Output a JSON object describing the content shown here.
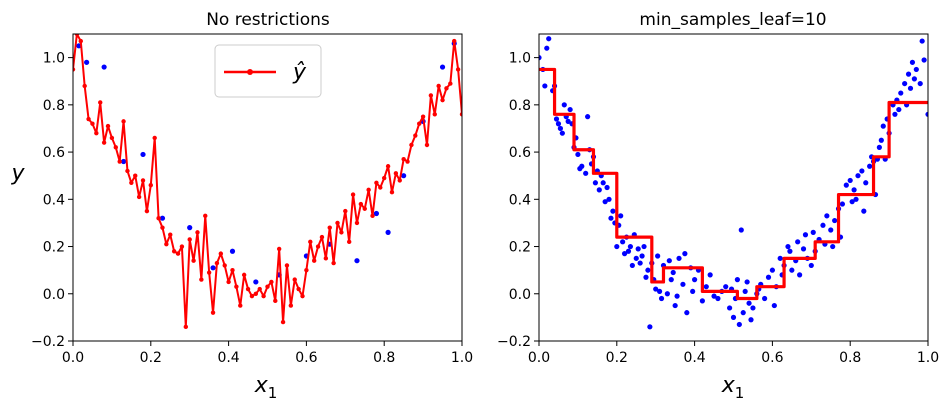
{
  "chart_data": [
    {
      "type": "scatter",
      "title": "No restrictions",
      "xlabel": "x",
      "xlabel_sub": "1",
      "ylabel": "y",
      "xlim": [
        0.0,
        1.0
      ],
      "ylim": [
        -0.2,
        1.1
      ],
      "xticks": [
        "0.0",
        "0.2",
        "0.4",
        "0.6",
        "0.8",
        "1.0"
      ],
      "yticks": [
        "−0.2",
        "0.0",
        "0.2",
        "0.4",
        "0.6",
        "0.8",
        "1.0"
      ],
      "legend": {
        "label": "ŷ",
        "placement": "top-center"
      },
      "series": [
        {
          "kind": "points",
          "color": "#0000ff",
          "points": [
            [
              0.015,
              1.05
            ],
            [
              0.035,
              0.98
            ],
            [
              0.08,
              0.96
            ],
            [
              0.13,
              0.56
            ],
            [
              0.18,
              0.59
            ],
            [
              0.23,
              0.32
            ],
            [
              0.3,
              0.28
            ],
            [
              0.36,
              0.11
            ],
            [
              0.41,
              0.18
            ],
            [
              0.47,
              0.05
            ],
            [
              0.53,
              0.08
            ],
            [
              0.6,
              0.16
            ],
            [
              0.66,
              0.21
            ],
            [
              0.73,
              0.14
            ],
            [
              0.78,
              0.34
            ],
            [
              0.81,
              0.26
            ],
            [
              0.85,
              0.5
            ],
            [
              0.9,
              0.73
            ],
            [
              0.95,
              0.96
            ],
            [
              0.98,
              1.06
            ]
          ]
        },
        {
          "kind": "step",
          "color": "#ff0000",
          "name": "ŷ",
          "x": [
            0.0,
            0.01,
            0.02,
            0.03,
            0.04,
            0.05,
            0.06,
            0.07,
            0.08,
            0.09,
            0.1,
            0.11,
            0.12,
            0.13,
            0.14,
            0.15,
            0.16,
            0.17,
            0.18,
            0.19,
            0.2,
            0.21,
            0.22,
            0.23,
            0.24,
            0.25,
            0.26,
            0.27,
            0.28,
            0.29,
            0.3,
            0.31,
            0.32,
            0.33,
            0.34,
            0.35,
            0.36,
            0.37,
            0.38,
            0.39,
            0.4,
            0.41,
            0.42,
            0.43,
            0.44,
            0.45,
            0.46,
            0.47,
            0.48,
            0.49,
            0.5,
            0.51,
            0.52,
            0.53,
            0.54,
            0.55,
            0.56,
            0.57,
            0.58,
            0.59,
            0.6,
            0.61,
            0.62,
            0.63,
            0.64,
            0.65,
            0.66,
            0.67,
            0.68,
            0.69,
            0.7,
            0.71,
            0.72,
            0.73,
            0.74,
            0.75,
            0.76,
            0.77,
            0.78,
            0.79,
            0.8,
            0.81,
            0.82,
            0.83,
            0.84,
            0.85,
            0.86,
            0.87,
            0.88,
            0.89,
            0.9,
            0.91,
            0.92,
            0.93,
            0.94,
            0.95,
            0.96,
            0.97,
            0.98,
            0.99,
            1.0
          ],
          "y": [
            0.95,
            1.1,
            1.07,
            0.88,
            0.74,
            0.72,
            0.68,
            0.81,
            0.64,
            0.71,
            0.66,
            0.62,
            0.56,
            0.73,
            0.52,
            0.47,
            0.5,
            0.41,
            0.48,
            0.35,
            0.46,
            0.66,
            0.32,
            0.28,
            0.21,
            0.25,
            0.18,
            0.17,
            0.2,
            -0.14,
            0.23,
            0.14,
            0.26,
            0.06,
            0.33,
            0.09,
            -0.08,
            0.13,
            0.17,
            0.12,
            0.05,
            0.1,
            0.03,
            -0.05,
            0.08,
            0.02,
            -0.01,
            0.0,
            0.02,
            -0.01,
            0.03,
            0.05,
            -0.03,
            0.19,
            -0.12,
            0.12,
            -0.05,
            0.06,
            0.02,
            -0.01,
            0.1,
            0.22,
            0.14,
            0.2,
            0.24,
            0.15,
            0.28,
            0.13,
            0.3,
            0.26,
            0.35,
            0.22,
            0.42,
            0.3,
            0.38,
            0.36,
            0.44,
            0.33,
            0.47,
            0.45,
            0.49,
            0.54,
            0.43,
            0.51,
            0.48,
            0.57,
            0.56,
            0.63,
            0.67,
            0.72,
            0.75,
            0.63,
            0.84,
            0.76,
            0.88,
            0.82,
            0.87,
            0.89,
            1.07,
            0.95,
            0.76
          ]
        }
      ]
    },
    {
      "type": "scatter",
      "title": "min_samples_leaf=10",
      "xlabel": "x",
      "xlabel_sub": "1",
      "xlim": [
        0.0,
        1.0
      ],
      "ylim": [
        -0.2,
        1.1
      ],
      "xticks": [
        "0.0",
        "0.2",
        "0.4",
        "0.6",
        "0.8",
        "1.0"
      ],
      "yticks": [
        "−0.2",
        "0.0",
        "0.2",
        "0.4",
        "0.6",
        "0.8",
        "1.0"
      ],
      "series": [
        {
          "kind": "points",
          "color": "#0000ff",
          "points": [
            [
              0.0,
              1.0
            ],
            [
              0.01,
              0.95
            ],
            [
              0.015,
              0.88
            ],
            [
              0.02,
              1.04
            ],
            [
              0.025,
              1.08
            ],
            [
              0.035,
              0.86
            ],
            [
              0.04,
              0.88
            ],
            [
              0.045,
              0.74
            ],
            [
              0.05,
              0.72
            ],
            [
              0.055,
              0.7
            ],
            [
              0.06,
              0.68
            ],
            [
              0.065,
              0.8
            ],
            [
              0.07,
              0.75
            ],
            [
              0.075,
              0.73
            ],
            [
              0.08,
              0.78
            ],
            [
              0.085,
              0.72
            ],
            [
              0.09,
              0.62
            ],
            [
              0.095,
              0.66
            ],
            [
              0.1,
              0.59
            ],
            [
              0.105,
              0.53
            ],
            [
              0.11,
              0.54
            ],
            [
              0.12,
              0.51
            ],
            [
              0.125,
              0.75
            ],
            [
              0.13,
              0.61
            ],
            [
              0.135,
              0.55
            ],
            [
              0.14,
              0.58
            ],
            [
              0.145,
              0.47
            ],
            [
              0.15,
              0.52
            ],
            [
              0.155,
              0.44
            ],
            [
              0.16,
              0.5
            ],
            [
              0.165,
              0.47
            ],
            [
              0.17,
              0.39
            ],
            [
              0.175,
              0.45
            ],
            [
              0.18,
              0.4
            ],
            [
              0.185,
              0.32
            ],
            [
              0.19,
              0.35
            ],
            [
              0.195,
              0.3
            ],
            [
              0.2,
              0.2
            ],
            [
              0.205,
              0.29
            ],
            [
              0.21,
              0.33
            ],
            [
              0.215,
              0.22
            ],
            [
              0.22,
              0.17
            ],
            [
              0.225,
              0.24
            ],
            [
              0.23,
              0.18
            ],
            [
              0.235,
              0.2
            ],
            [
              0.24,
              0.12
            ],
            [
              0.245,
              0.25
            ],
            [
              0.25,
              0.15
            ],
            [
              0.255,
              0.19
            ],
            [
              0.26,
              0.13
            ],
            [
              0.265,
              0.16
            ],
            [
              0.27,
              0.2
            ],
            [
              0.275,
              0.07
            ],
            [
              0.28,
              0.1
            ],
            [
              0.285,
              -0.14
            ],
            [
              0.29,
              0.13
            ],
            [
              0.295,
              0.06
            ],
            [
              0.3,
              0.02
            ],
            [
              0.305,
              0.16
            ],
            [
              0.31,
              0.01
            ],
            [
              0.315,
              -0.02
            ],
            [
              0.32,
              0.12
            ],
            [
              0.33,
              0.0
            ],
            [
              0.335,
              0.14
            ],
            [
              0.34,
              0.06
            ],
            [
              0.345,
              0.09
            ],
            [
              0.35,
              -0.05
            ],
            [
              0.355,
              -0.01
            ],
            [
              0.36,
              0.15
            ],
            [
              0.37,
              0.04
            ],
            [
              0.375,
              0.17
            ],
            [
              0.38,
              -0.08
            ],
            [
              0.39,
              0.11
            ],
            [
              0.395,
              0.01
            ],
            [
              0.4,
              0.06
            ],
            [
              0.41,
              0.1
            ],
            [
              0.42,
              -0.03
            ],
            [
              0.43,
              0.03
            ],
            [
              0.44,
              0.08
            ],
            [
              0.45,
              -0.01
            ],
            [
              0.46,
              -0.02
            ],
            [
              0.47,
              0.01
            ],
            [
              0.48,
              0.03
            ],
            [
              0.49,
              -0.06
            ],
            [
              0.495,
              0.02
            ],
            [
              0.5,
              -0.1
            ],
            [
              0.505,
              -0.02
            ],
            [
              0.51,
              0.06
            ],
            [
              0.515,
              -0.13
            ],
            [
              0.52,
              0.27
            ],
            [
              0.525,
              -0.08
            ],
            [
              0.53,
              0.01
            ],
            [
              0.535,
              0.05
            ],
            [
              0.54,
              -0.04
            ],
            [
              0.545,
              -0.11
            ],
            [
              0.55,
              -0.06
            ],
            [
              0.56,
              0.0
            ],
            [
              0.565,
              0.02
            ],
            [
              0.57,
              0.04
            ],
            [
              0.58,
              -0.02
            ],
            [
              0.59,
              0.07
            ],
            [
              0.6,
              0.1
            ],
            [
              0.605,
              -0.05
            ],
            [
              0.61,
              0.03
            ],
            [
              0.62,
              0.15
            ],
            [
              0.625,
              0.08
            ],
            [
              0.63,
              0.12
            ],
            [
              0.64,
              0.2
            ],
            [
              0.645,
              0.18
            ],
            [
              0.65,
              0.1
            ],
            [
              0.66,
              0.14
            ],
            [
              0.665,
              0.22
            ],
            [
              0.67,
              0.08
            ],
            [
              0.68,
              0.19
            ],
            [
              0.685,
              0.25
            ],
            [
              0.69,
              0.15
            ],
            [
              0.7,
              0.12
            ],
            [
              0.705,
              0.26
            ],
            [
              0.71,
              0.18
            ],
            [
              0.72,
              0.23
            ],
            [
              0.73,
              0.29
            ],
            [
              0.735,
              0.21
            ],
            [
              0.74,
              0.33
            ],
            [
              0.75,
              0.27
            ],
            [
              0.755,
              0.2
            ],
            [
              0.76,
              0.31
            ],
            [
              0.77,
              0.36
            ],
            [
              0.775,
              0.24
            ],
            [
              0.78,
              0.38
            ],
            [
              0.79,
              0.46
            ],
            [
              0.8,
              0.48
            ],
            [
              0.805,
              0.39
            ],
            [
              0.81,
              0.44
            ],
            [
              0.815,
              0.4
            ],
            [
              0.82,
              0.5
            ],
            [
              0.83,
              0.52
            ],
            [
              0.835,
              0.35
            ],
            [
              0.84,
              0.47
            ],
            [
              0.85,
              0.54
            ],
            [
              0.855,
              0.58
            ],
            [
              0.86,
              0.56
            ],
            [
              0.865,
              0.42
            ],
            [
              0.87,
              0.57
            ],
            [
              0.875,
              0.62
            ],
            [
              0.88,
              0.65
            ],
            [
              0.885,
              0.71
            ],
            [
              0.89,
              0.57
            ],
            [
              0.895,
              0.74
            ],
            [
              0.9,
              0.68
            ],
            [
              0.91,
              0.8
            ],
            [
              0.915,
              0.76
            ],
            [
              0.92,
              0.82
            ],
            [
              0.925,
              0.78
            ],
            [
              0.93,
              0.85
            ],
            [
              0.94,
              0.89
            ],
            [
              0.945,
              0.8
            ],
            [
              0.95,
              0.93
            ],
            [
              0.955,
              0.87
            ],
            [
              0.96,
              0.98
            ],
            [
              0.965,
              0.91
            ],
            [
              0.97,
              0.95
            ],
            [
              0.98,
              0.89
            ],
            [
              0.985,
              1.07
            ],
            [
              0.99,
              0.99
            ],
            [
              1.0,
              0.76
            ]
          ]
        },
        {
          "kind": "step",
          "color": "#ff0000",
          "x": [
            0.0,
            0.04,
            0.04,
            0.09,
            0.09,
            0.14,
            0.14,
            0.2,
            0.2,
            0.29,
            0.29,
            0.32,
            0.32,
            0.42,
            0.42,
            0.51,
            0.51,
            0.56,
            0.56,
            0.63,
            0.63,
            0.71,
            0.71,
            0.77,
            0.77,
            0.86,
            0.86,
            0.9,
            0.9,
            1.0
          ],
          "y": [
            0.95,
            0.95,
            0.76,
            0.76,
            0.61,
            0.61,
            0.51,
            0.51,
            0.24,
            0.24,
            0.05,
            0.05,
            0.11,
            0.11,
            0.01,
            0.01,
            -0.02,
            -0.02,
            0.03,
            0.03,
            0.15,
            0.15,
            0.22,
            0.22,
            0.42,
            0.42,
            0.58,
            0.58,
            0.81,
            0.81
          ]
        }
      ]
    }
  ]
}
